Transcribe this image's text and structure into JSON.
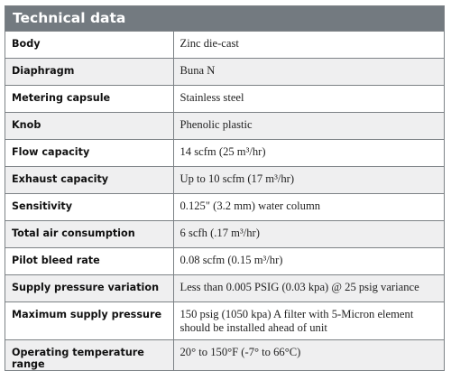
{
  "header": {
    "title": "Technical data"
  },
  "rows": [
    {
      "label": "Body",
      "value": "Zinc die-cast"
    },
    {
      "label": "Diaphragm",
      "value": "Buna N"
    },
    {
      "label": "Metering capsule",
      "value": "Stainless steel"
    },
    {
      "label": "Knob",
      "value": "Phenolic plastic"
    },
    {
      "label": "Flow capacity",
      "value": "14 scfm (25 m³/hr)"
    },
    {
      "label": "Exhaust capacity",
      "value": "Up to 10 scfm (17 m³/hr)"
    },
    {
      "label": "Sensitivity",
      "value": "0.125\" (3.2 mm) water column"
    },
    {
      "label": "Total air consumption",
      "value": "6 scfh (.17 m³/hr)"
    },
    {
      "label": "Pilot bleed rate",
      "value": "0.08 scfm (0.15 m³/hr)"
    },
    {
      "label": "Supply pressure variation",
      "value": "Less than 0.005 PSIG (0.03 kpa) @ 25 psig variance"
    },
    {
      "label": "Maximum supply pressure",
      "value": "150 psig (1050 kpa) A filter with 5-Micron element should be installed ahead of unit"
    },
    {
      "label": "Operating temperature range",
      "value": "20° to 150°F (-7° to 66°C)"
    }
  ],
  "colors": {
    "header_bg": "#737a80",
    "header_text": "#ffffff",
    "row_stripe": "#efeff0",
    "border": "#7d8286"
  }
}
